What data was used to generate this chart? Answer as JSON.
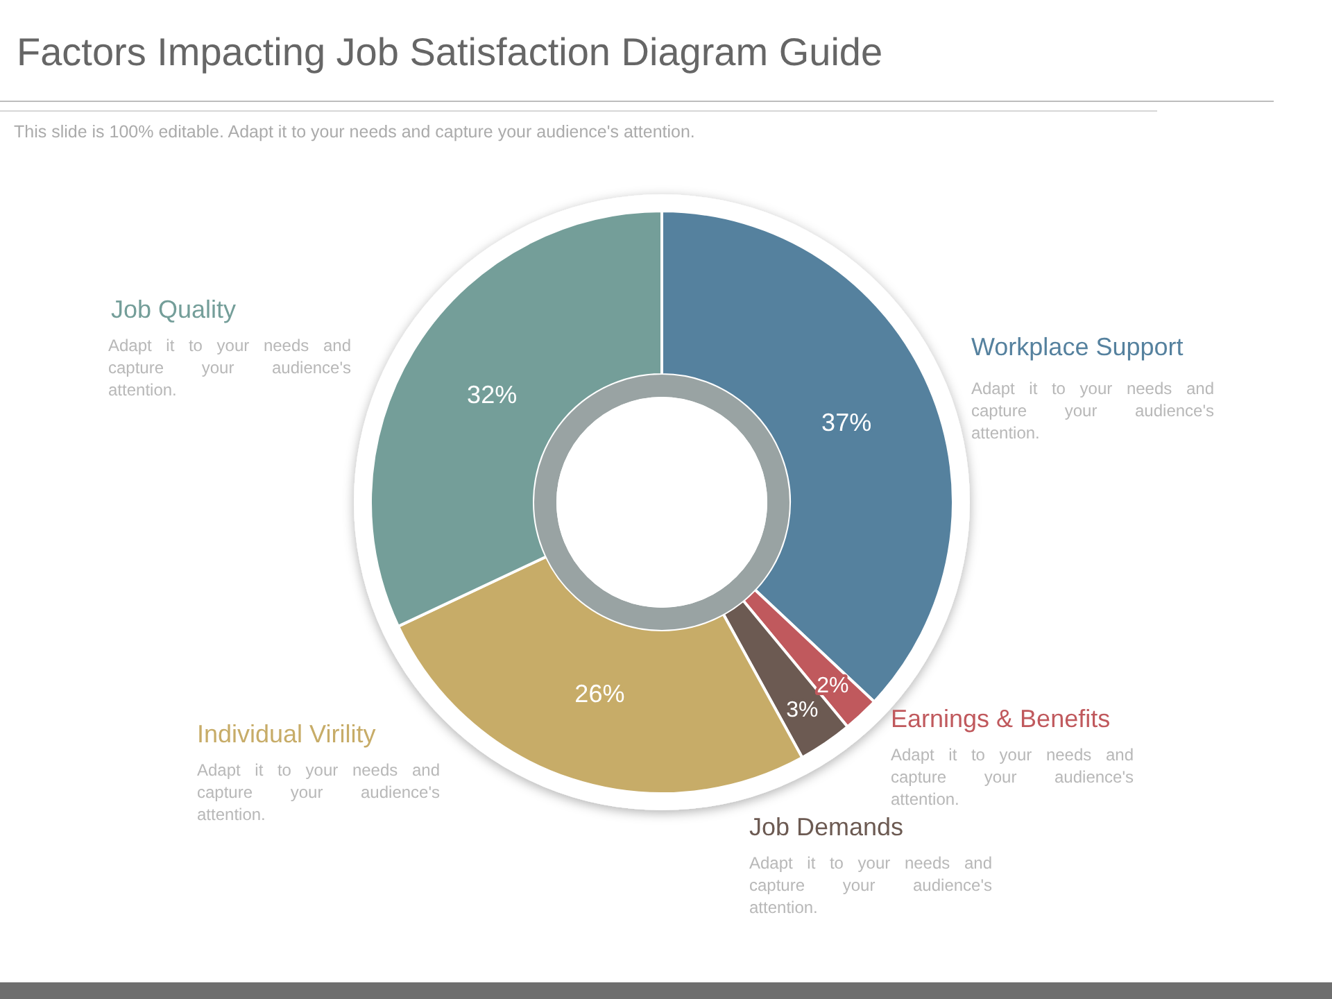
{
  "chart_data": {
    "type": "donut",
    "title": "Factors Impacting Job Satisfaction Diagram Guide",
    "subtitle": "This slide is 100% editable. Adapt it to your needs and capture your audience's attention.",
    "categories": [
      "Workplace Support",
      "Earnings & Benefits",
      "Job Demands",
      "Individual Virility",
      "Job Quality"
    ],
    "values": [
      37,
      2,
      3,
      26,
      32
    ],
    "colors": [
      "#55819e",
      "#c0595d",
      "#6c5a52",
      "#c7ac68",
      "#749e99"
    ],
    "value_labels": [
      "37%",
      "2%",
      "3%",
      "26%",
      "32%"
    ],
    "annotations": [
      "Adapt it to your needs and capture your audience's attention.",
      "Adapt it to your needs and capture your audience's attention.",
      "Adapt it to your needs and capture your audience's attention.",
      "Adapt it to your needs and capture your audience's attention.",
      "Adapt it to your needs and capture your audience's attention."
    ]
  }
}
